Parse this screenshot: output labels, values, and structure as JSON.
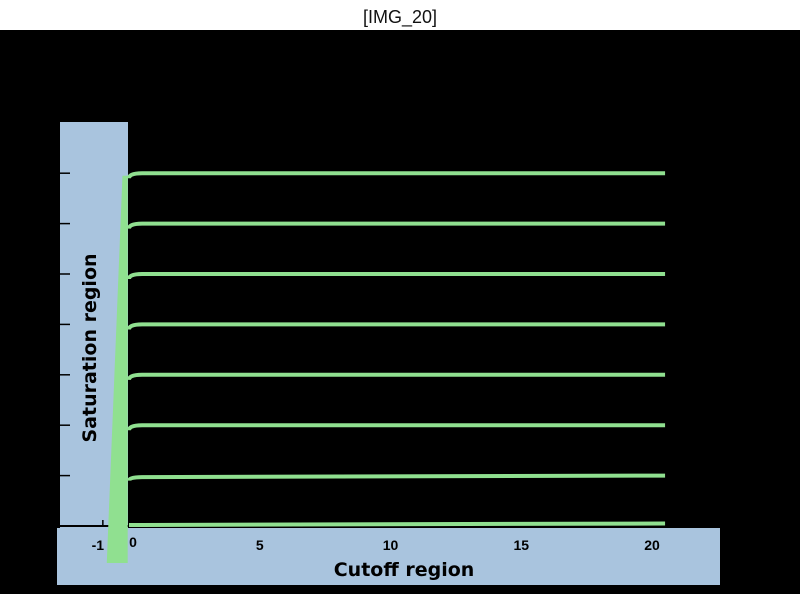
{
  "header": {
    "title": "[IMG_20]"
  },
  "chart_data": {
    "type": "line",
    "xlabel": "Cutoff region",
    "ylabel": "Saturation region",
    "xlim": [
      -1.5,
      21.5
    ],
    "ylim": [
      0,
      7
    ],
    "x_ticks": [
      -1,
      0,
      5,
      10,
      15,
      20
    ],
    "x_tick_labels": [
      "-1",
      "0",
      "5",
      "10",
      "15",
      "20"
    ],
    "y_ticks": [
      1,
      2,
      3,
      4,
      5,
      6,
      7
    ],
    "y_tick_labels": [
      "",
      "",
      "",
      "",
      "",
      "",
      ""
    ],
    "grid": false,
    "legend": "none",
    "colors": {
      "background": "#000000",
      "axis_panel": "#a9c4de",
      "series": "#90e090",
      "title_bar": "#ffffff"
    },
    "series": [
      {
        "x": [
          0,
          0.5,
          20.5
        ],
        "y": [
          0.02,
          0.02,
          0.05
        ]
      },
      {
        "x": [
          0,
          0.5,
          20.5
        ],
        "y": [
          0.9,
          0.97,
          1.0
        ]
      },
      {
        "x": [
          0,
          0.5,
          20.5
        ],
        "y": [
          1.9,
          2.0,
          2.0
        ]
      },
      {
        "x": [
          0,
          0.5,
          20.5
        ],
        "y": [
          2.9,
          3.0,
          3.0
        ]
      },
      {
        "x": [
          0,
          0.5,
          20.5
        ],
        "y": [
          3.9,
          4.0,
          4.0
        ]
      },
      {
        "x": [
          0,
          0.5,
          20.5
        ],
        "y": [
          4.9,
          5.0,
          5.0
        ]
      },
      {
        "x": [
          0,
          0.5,
          20.5
        ],
        "y": [
          5.9,
          6.0,
          6.0
        ]
      },
      {
        "x": [
          0,
          0.5,
          20.5
        ],
        "y": [
          6.9,
          7.0,
          7.0
        ]
      }
    ]
  }
}
